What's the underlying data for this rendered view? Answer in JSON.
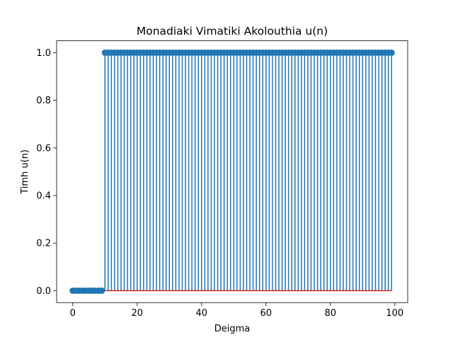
{
  "chart_data": {
    "type": "stem",
    "title": "Monadiaki Vimatiki Akolouthia u(n)",
    "xlabel": "Deigma",
    "ylabel": "Timh u(n)",
    "xlim": [
      -5,
      104
    ],
    "ylim": [
      -0.05,
      1.05
    ],
    "xticks": [
      0,
      20,
      40,
      60,
      80,
      100
    ],
    "yticks": [
      0.0,
      0.2,
      0.4,
      0.6,
      0.8,
      1.0
    ],
    "xtick_labels": [
      "0",
      "20",
      "40",
      "60",
      "80",
      "100"
    ],
    "ytick_labels": [
      "0.0",
      "0.2",
      "0.4",
      "0.6",
      "0.8",
      "1.0"
    ],
    "grid": false,
    "series": [
      {
        "x_start": 0,
        "x_end": 99,
        "step_at": 10,
        "value_before": 0,
        "value_after": 1,
        "color": "#1f77b4"
      }
    ],
    "baseline": {
      "y": 0,
      "color": "#d62728"
    }
  }
}
